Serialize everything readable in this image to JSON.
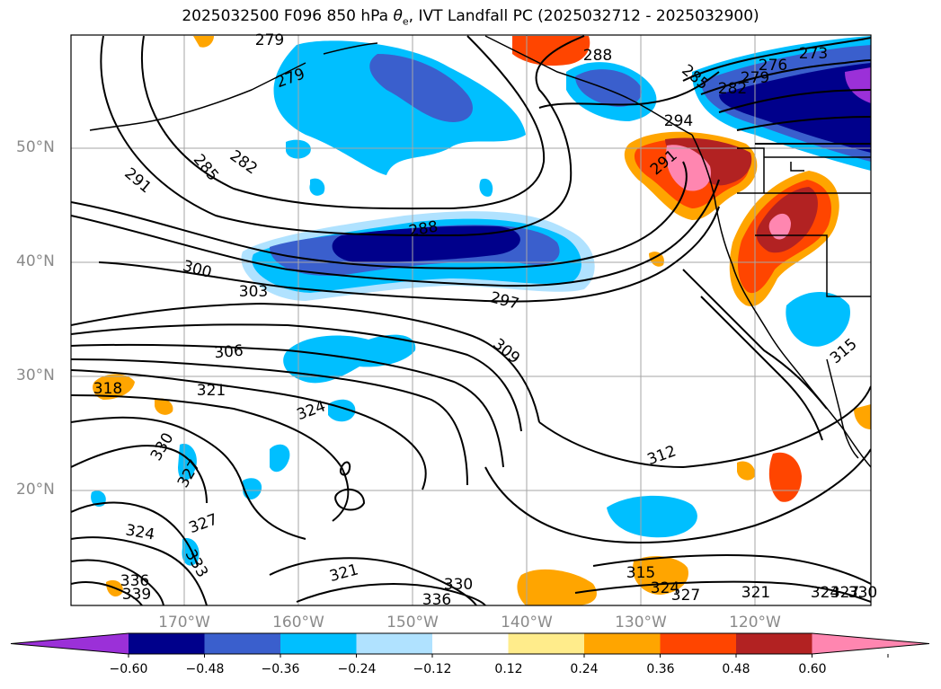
{
  "title": {
    "prefix": "2025032500 F096 850 hPa ",
    "symbol": "θ",
    "subscript": "e",
    "suffix": ", IVT Landfall PC (2025032712 - 2025032900)"
  },
  "latitude_labels": [
    "50°N",
    "40°N",
    "30°N",
    "20°N"
  ],
  "longitude_labels": [
    "170°W",
    "160°W",
    "150°W",
    "140°W",
    "130°W",
    "120°W"
  ],
  "colorbar": {
    "ticks": [
      "−0.60",
      "−0.48",
      "−0.36",
      "−0.24",
      "−0.12",
      "0.12",
      "0.24",
      "0.36",
      "0.48",
      "0.60"
    ],
    "colors": [
      "#9b30d8",
      "#00008b",
      "#3a5fcd",
      "#00bfff",
      "#b0e2ff",
      "#ffffff",
      "#ffec8b",
      "#ffa500",
      "#ff4500",
      "#b22222",
      "#ff86b0"
    ]
  },
  "contour_labels": [
    {
      "text": "279"
    },
    {
      "text": "279"
    },
    {
      "text": "291"
    },
    {
      "text": "285"
    },
    {
      "text": "282"
    },
    {
      "text": "288"
    },
    {
      "text": "300"
    },
    {
      "text": "303"
    },
    {
      "text": "297"
    },
    {
      "text": "306"
    },
    {
      "text": "309"
    },
    {
      "text": "318"
    },
    {
      "text": "321"
    },
    {
      "text": "324"
    },
    {
      "text": "330"
    },
    {
      "text": "327"
    },
    {
      "text": "324"
    },
    {
      "text": "327"
    },
    {
      "text": "333"
    },
    {
      "text": "336"
    },
    {
      "text": "339"
    },
    {
      "text": "321"
    },
    {
      "text": "330"
    },
    {
      "text": "336"
    },
    {
      "text": "312"
    },
    {
      "text": "315"
    },
    {
      "text": "327"
    },
    {
      "text": "324"
    },
    {
      "text": "321"
    },
    {
      "text": "324"
    },
    {
      "text": "327"
    },
    {
      "text": "330"
    },
    {
      "text": "276"
    },
    {
      "text": "273"
    },
    {
      "text": "279"
    },
    {
      "text": "282"
    },
    {
      "text": "285"
    },
    {
      "text": "288"
    },
    {
      "text": "294"
    },
    {
      "text": "291"
    },
    {
      "text": "315"
    }
  ]
}
